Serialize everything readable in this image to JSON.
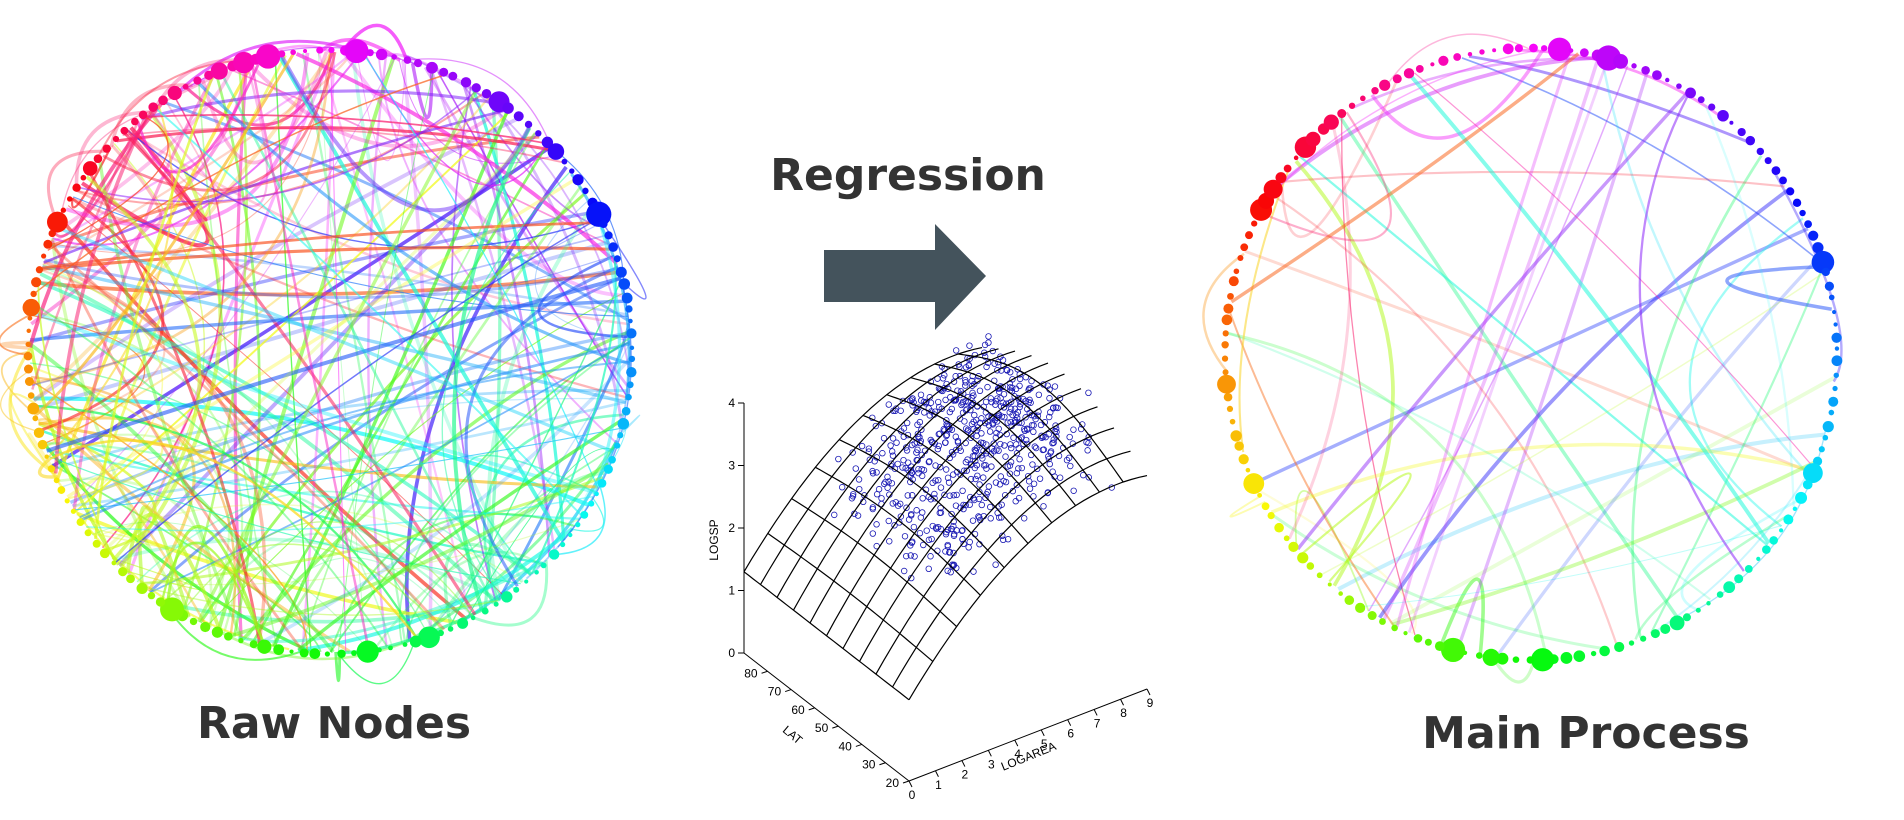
{
  "header": {
    "title": "Regression"
  },
  "left": {
    "label": "Raw Nodes"
  },
  "right": {
    "label": "Main Process"
  },
  "plot": {
    "z_axis": {
      "label": "LOGSP",
      "ticks": [
        "0",
        "1",
        "2",
        "3",
        "4"
      ]
    },
    "lat_axis": {
      "label": "LAT",
      "ticks": [
        "20",
        "30",
        "40",
        "50",
        "60",
        "70",
        "80"
      ]
    },
    "area_axis": {
      "label": "LOGAREA",
      "ticks": [
        "0",
        "1",
        "2",
        "3",
        "4",
        "5",
        "6",
        "7",
        "8",
        "9"
      ]
    }
  }
}
